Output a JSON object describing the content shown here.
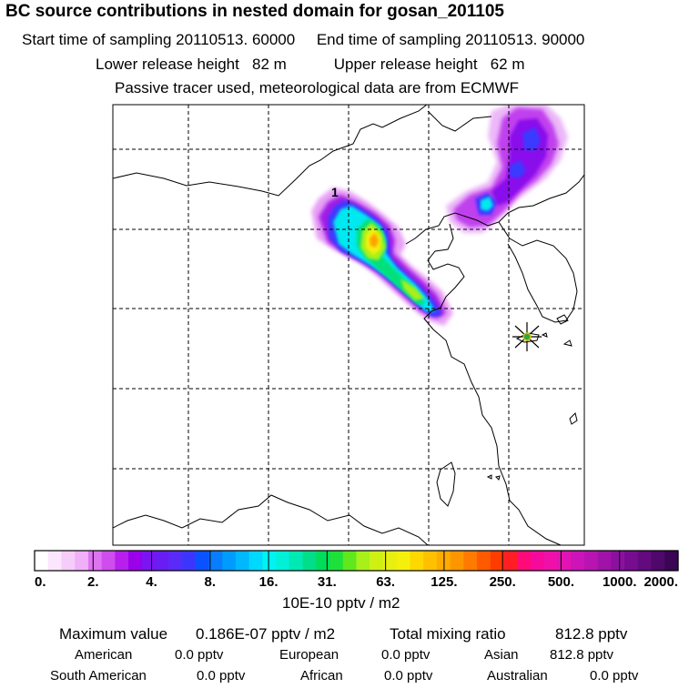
{
  "header": {
    "title": "BC  source contributions in nested domain for gosan_201105",
    "sampling_line": "Start time of sampling 20110513. 60000     End time of sampling 20110513. 90000",
    "release_line": "Lower release height   82 m           Upper release height   62 m",
    "tracer_line": "Passive tracer used, meteorological data are from ECMWF"
  },
  "map": {
    "contour_label": "1",
    "receptor_marker": "receptor-star-icon",
    "colors": {
      "land_outline": "#000000",
      "grid": "#000000"
    }
  },
  "colorbar": {
    "tick_labels": [
      "0.",
      "2.",
      "4.",
      "8.",
      "16.",
      "31.",
      "63.",
      "125.",
      "250.",
      "500.",
      "1000.",
      "2000."
    ],
    "colors": [
      "#ffffff",
      "#fbe6fd",
      "#f6ccfb",
      "#f0b0f8",
      "#de74f2",
      "#cf4cef",
      "#b71fec",
      "#9a00ea",
      "#7a14f0",
      "#6a1cf4",
      "#5a2af8",
      "#3c36fc",
      "#0b52ff",
      "#0a7cff",
      "#009bff",
      "#00b8ff",
      "#00d8ff",
      "#00f2f2",
      "#00f0d8",
      "#00e8b4",
      "#00de8a",
      "#00dd5a",
      "#1ee03a",
      "#5fe81d",
      "#a8f01a",
      "#d0f014",
      "#e8f010",
      "#f4f00c",
      "#ffd800",
      "#ffc000",
      "#ffac00",
      "#ff9600",
      "#ff7a00",
      "#ff5a00",
      "#ff3c00",
      "#ff1e24",
      "#ff0a78",
      "#f60a9c",
      "#ee10a8",
      "#e014b2",
      "#cc14b8",
      "#b814b4",
      "#a012a8",
      "#8c10a0",
      "#780c90",
      "#620a7e",
      "#4e086a",
      "#3a0654"
    ],
    "units": "10E-10 pptv / m2"
  },
  "footer": {
    "max_label": "Maximum value",
    "max_value": "0.186E-07 pptv / m2",
    "total_label": "Total mixing ratio",
    "total_value": "812.8 pptv",
    "regions": [
      {
        "name": "American",
        "value": "0.0 pptv"
      },
      {
        "name": "European",
        "value": "0.0 pptv"
      },
      {
        "name": "Asian",
        "value": "812.8 pptv"
      },
      {
        "name": "South American",
        "value": "0.0 pptv"
      },
      {
        "name": "African",
        "value": "0.0 pptv"
      },
      {
        "name": "Australian",
        "value": "0.0 pptv"
      }
    ]
  }
}
